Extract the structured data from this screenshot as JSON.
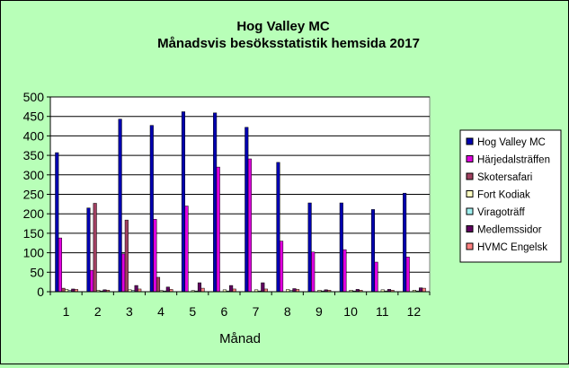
{
  "chart_data": {
    "type": "bar",
    "title": "Hog Valley MC",
    "subtitle": "Månadsvis besöksstatistik hemsida 2017",
    "xlabel": "Månad",
    "ylabel": "",
    "ylim": [
      0,
      500
    ],
    "yticks": [
      0,
      50,
      100,
      150,
      200,
      250,
      300,
      350,
      400,
      450,
      500
    ],
    "grid": true,
    "legend_position": "right",
    "categories": [
      "1",
      "2",
      "3",
      "4",
      "5",
      "6",
      "7",
      "8",
      "9",
      "10",
      "11",
      "12"
    ],
    "series": [
      {
        "name": "Hog Valley MC",
        "color": "#0000b0",
        "values": [
          357,
          215,
          443,
          427,
          462,
          459,
          422,
          332,
          228,
          228,
          211,
          253
        ]
      },
      {
        "name": "Härjedalsträffen",
        "color": "#e000e0",
        "values": [
          138,
          55,
          97,
          186,
          220,
          320,
          341,
          130,
          102,
          108,
          76,
          89
        ]
      },
      {
        "name": "Skotersafari",
        "color": "#a04060",
        "values": [
          9,
          227,
          184,
          37,
          0,
          0,
          0,
          0,
          0,
          0,
          0,
          0
        ]
      },
      {
        "name": "Fort Kodiak",
        "color": "#ffffc0",
        "values": [
          6,
          4,
          5,
          3,
          3,
          5,
          5,
          6,
          4,
          4,
          5,
          4
        ]
      },
      {
        "name": "Viragoträff",
        "color": "#a0f0f0",
        "values": [
          3,
          2,
          3,
          2,
          2,
          2,
          2,
          3,
          2,
          2,
          2,
          2
        ]
      },
      {
        "name": "Medlemssidor",
        "color": "#600060",
        "values": [
          7,
          5,
          16,
          12,
          23,
          16,
          23,
          8,
          5,
          6,
          6,
          10
        ]
      },
      {
        "name": "HVMC Engelsk",
        "color": "#ff8080",
        "values": [
          6,
          4,
          7,
          6,
          9,
          7,
          7,
          6,
          4,
          4,
          4,
          9
        ]
      }
    ]
  }
}
